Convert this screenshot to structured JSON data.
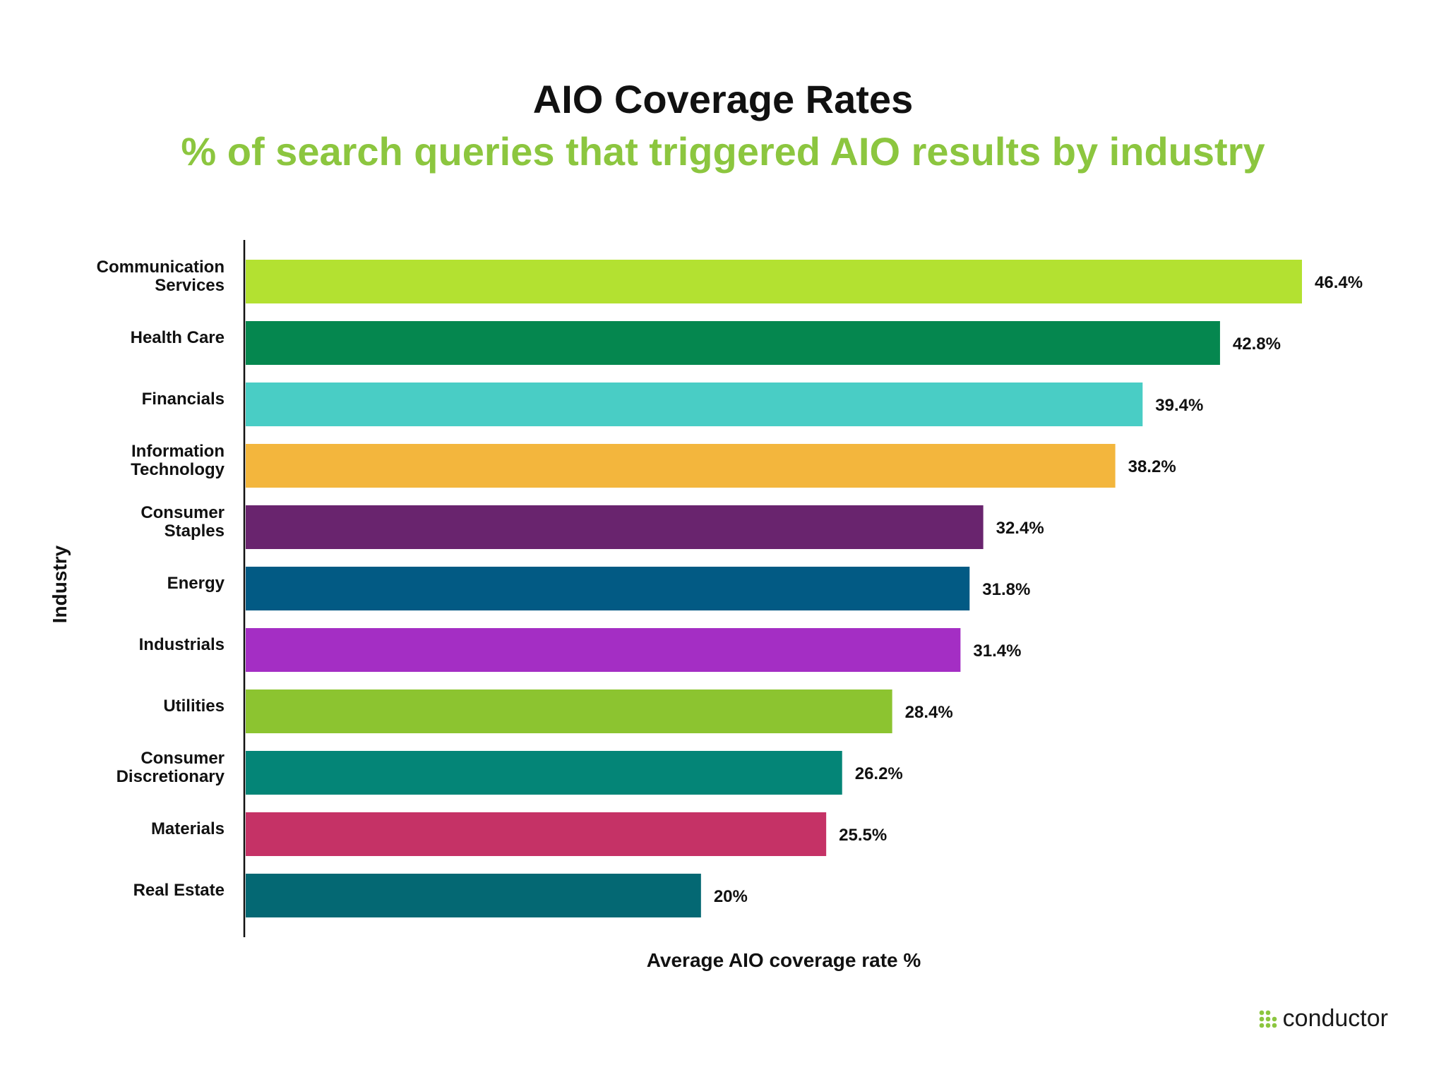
{
  "chart_data": {
    "type": "bar",
    "orientation": "horizontal",
    "title": "AIO Coverage Rates",
    "subtitle": "% of search queries that triggered AIO results by industry",
    "xlabel": "Average AIO coverage rate %",
    "ylabel": "Industry",
    "xlim": [
      0,
      46.4
    ],
    "grid": false,
    "categories": [
      [
        "Communication",
        "Services"
      ],
      [
        "Health Care"
      ],
      [
        "Financials"
      ],
      [
        "Information",
        "Technology"
      ],
      [
        "Consumer",
        "Staples"
      ],
      [
        "Energy"
      ],
      [
        "Industrials"
      ],
      [
        "Utilities"
      ],
      [
        "Consumer",
        "Discretionary"
      ],
      [
        "Materials"
      ],
      [
        "Real Estate"
      ]
    ],
    "values": [
      46.4,
      42.8,
      39.4,
      38.2,
      32.4,
      31.8,
      31.4,
      28.4,
      26.2,
      25.5,
      20
    ],
    "value_labels": [
      "46.4%",
      "42.8%",
      "39.4%",
      "38.2%",
      "32.4%",
      "31.8%",
      "31.4%",
      "28.4%",
      "26.2%",
      "25.5%",
      "20%"
    ],
    "colors": [
      "#b3e131",
      "#05874f",
      "#49cdc5",
      "#f3b63d",
      "#69246e",
      "#025a84",
      "#a42ec4",
      "#8cc430",
      "#048577",
      "#c53266",
      "#046873"
    ]
  },
  "brand": {
    "name": "conductor",
    "icon": "conductor-dots-icon",
    "color": "#8cc63f"
  }
}
